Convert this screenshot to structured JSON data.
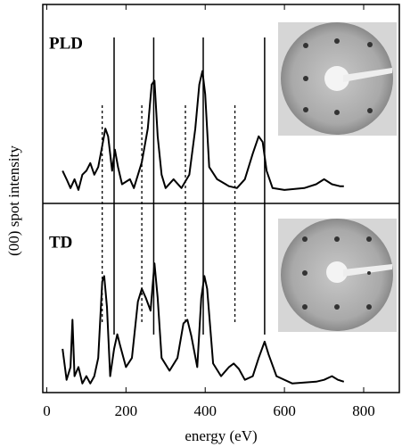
{
  "chart_data": {
    "type": "line",
    "xlabel": "energy (eV)",
    "ylabel": "(00) spot intensity",
    "xlim": [
      -10,
      890
    ],
    "xticks": [
      0,
      200,
      400,
      600,
      800
    ],
    "ylim": [
      0,
      100
    ],
    "solid_lines": [
      170,
      270,
      395,
      550
    ],
    "dotted_lines": [
      140,
      240,
      350,
      475
    ],
    "series": [
      {
        "name": "PLD",
        "color": "#000000",
        "x": [
          40,
          50,
          60,
          70,
          80,
          90,
          100,
          110,
          120,
          130,
          140,
          148,
          155,
          165,
          172,
          180,
          190,
          210,
          220,
          240,
          255,
          265,
          272,
          280,
          290,
          300,
          320,
          340,
          360,
          375,
          385,
          393,
          400,
          410,
          430,
          460,
          480,
          500,
          520,
          535,
          545,
          555,
          570,
          600,
          650,
          680,
          700,
          720,
          740,
          750
        ],
        "values": [
          17,
          12.6,
          8,
          12.6,
          7,
          15,
          17,
          21,
          15,
          19,
          30,
          39,
          35,
          17,
          28,
          19,
          10,
          12.6,
          8,
          21.5,
          39,
          62,
          64,
          35,
          15,
          8,
          12.6,
          8,
          15,
          39,
          62,
          69,
          57,
          19,
          12.6,
          9,
          8,
          12.6,
          26,
          35,
          32,
          17,
          8,
          7,
          8,
          10,
          12.6,
          10,
          9,
          9
        ]
      },
      {
        "name": "TD",
        "color": "#000000",
        "x": [
          40,
          50,
          60,
          65,
          70,
          80,
          90,
          100,
          110,
          120,
          130,
          140,
          145,
          152,
          160,
          170,
          178,
          185,
          200,
          215,
          230,
          240,
          250,
          262,
          272,
          280,
          290,
          310,
          330,
          345,
          355,
          365,
          380,
          390,
          398,
          405,
          420,
          440,
          460,
          472,
          485,
          500,
          520,
          535,
          550,
          560,
          580,
          620,
          680,
          700,
          720,
          735,
          750
        ],
        "values": [
          24,
          7,
          14,
          40,
          9,
          14,
          5,
          9,
          5,
          9,
          19,
          61,
          64,
          47,
          9,
          24,
          32,
          26,
          14,
          19,
          50,
          57,
          52,
          45,
          71,
          52,
          19,
          12,
          19,
          38,
          40,
          31,
          14,
          52,
          64,
          57,
          16,
          9,
          14,
          16,
          13,
          7,
          9,
          19,
          28,
          21,
          9,
          5,
          6,
          7,
          9,
          7,
          6
        ]
      }
    ]
  }
}
